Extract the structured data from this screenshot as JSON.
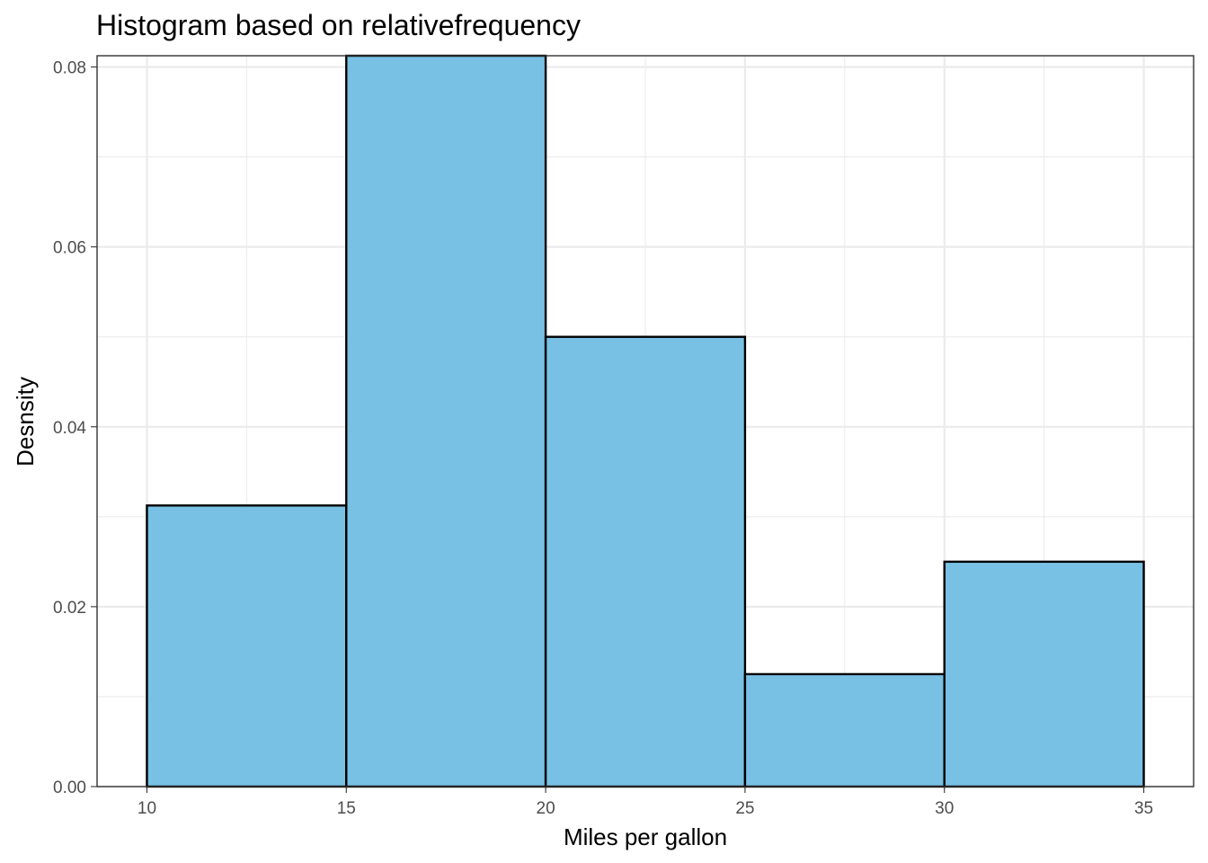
{
  "chart_data": {
    "type": "bar",
    "title": "Histogram based on relativefrequency",
    "xlabel": "Miles per gallon",
    "ylabel": "Desnsity",
    "bins": [
      {
        "x0": 10,
        "x1": 15,
        "value": 0.03125
      },
      {
        "x0": 15,
        "x1": 20,
        "value": 0.08125
      },
      {
        "x0": 20,
        "x1": 25,
        "value": 0.05
      },
      {
        "x0": 25,
        "x1": 30,
        "value": 0.0125
      },
      {
        "x0": 30,
        "x1": 35,
        "value": 0.025
      }
    ],
    "x_ticks": [
      10,
      15,
      20,
      25,
      30,
      35
    ],
    "y_ticks": [
      "0.00",
      "0.02",
      "0.04",
      "0.06",
      "0.08"
    ],
    "xlim": [
      8.75,
      36.25
    ],
    "ylim": [
      0,
      0.08125
    ],
    "grid": true,
    "bar_color": "#78C1E5",
    "bar_border_color": "#000000"
  }
}
